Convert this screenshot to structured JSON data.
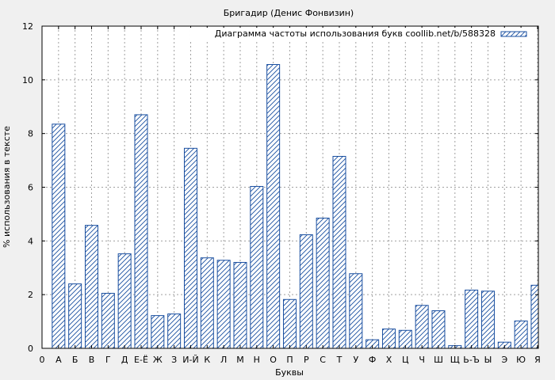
{
  "chart_data": {
    "type": "bar",
    "title": "Бригадир (Денис Фонвизин)",
    "xlabel": "Буквы",
    "ylabel": "% использования в тексте",
    "ylim": [
      0,
      12
    ],
    "yticks": [
      0,
      2,
      4,
      6,
      8,
      10,
      12
    ],
    "x_first_tick": "0",
    "categories": [
      "А",
      "Б",
      "В",
      "Г",
      "Д",
      "Е-Ё",
      "Ж",
      "З",
      "И-Й",
      "К",
      "Л",
      "М",
      "Н",
      "О",
      "П",
      "Р",
      "С",
      "Т",
      "У",
      "Ф",
      "Х",
      "Ц",
      "Ч",
      "Ш",
      "Щ",
      "Ь-Ъ",
      "Ы",
      "Э",
      "Ю",
      "Я"
    ],
    "series": [
      {
        "name": "Диаграмма частоты использования букв coollib.net/b/588328",
        "values": [
          8.35,
          2.4,
          4.58,
          2.05,
          3.52,
          8.7,
          1.22,
          1.28,
          7.45,
          3.37,
          3.28,
          3.2,
          6.03,
          10.57,
          1.82,
          4.23,
          4.85,
          7.15,
          2.78,
          0.32,
          0.72,
          0.67,
          1.6,
          1.4,
          0.1,
          2.17,
          2.13,
          0.23,
          1.02,
          2.35
        ]
      }
    ],
    "grid": true,
    "legend_position": "top-right",
    "colors": {
      "bar_stroke": "#1a4fa0",
      "bar_fill": "#ffffff",
      "grid": "#a0a0a0",
      "background": "#f0f0f0",
      "plot_background": "#ffffff"
    }
  }
}
